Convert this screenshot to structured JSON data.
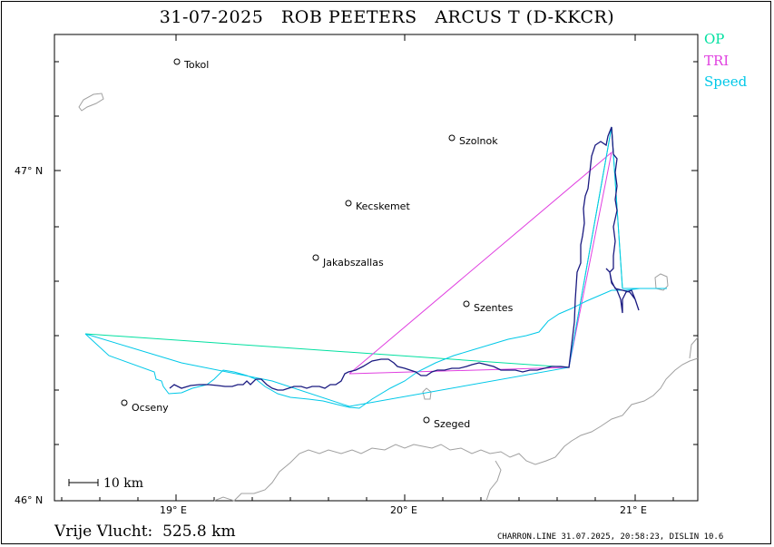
{
  "title": "31-07-2025   ROB PEETERS   ARCUS T (D-KKCR)",
  "legend": [
    {
      "label": "OP",
      "color": "#00e0a0"
    },
    {
      "label": "TRI",
      "color": "#e040e0"
    },
    {
      "label": "Speed",
      "color": "#00c8e8"
    }
  ],
  "axes": {
    "x_ticks": [
      "19° E",
      "20° E",
      "21° E"
    ],
    "y_ticks": [
      "47° N",
      "46° N"
    ]
  },
  "scale_bar": "10 km",
  "places": [
    {
      "name": "Tokol"
    },
    {
      "name": "Szolnok"
    },
    {
      "name": "Kecskemet"
    },
    {
      "name": "Jakabszallas"
    },
    {
      "name": "Szentes"
    },
    {
      "name": "Ocseny"
    },
    {
      "name": "Szeged"
    }
  ],
  "footer": {
    "distance": "Vrije Vlucht:  525.8 km",
    "info": "CHARRON.LINE 31.07.2025, 20:58:23, DISLIN 10.6"
  },
  "colors": {
    "track": "#1a1a80",
    "op": "#00e0a0",
    "tri": "#e040e0",
    "speed": "#00c8e8",
    "terrain": "#a0a0a0"
  }
}
